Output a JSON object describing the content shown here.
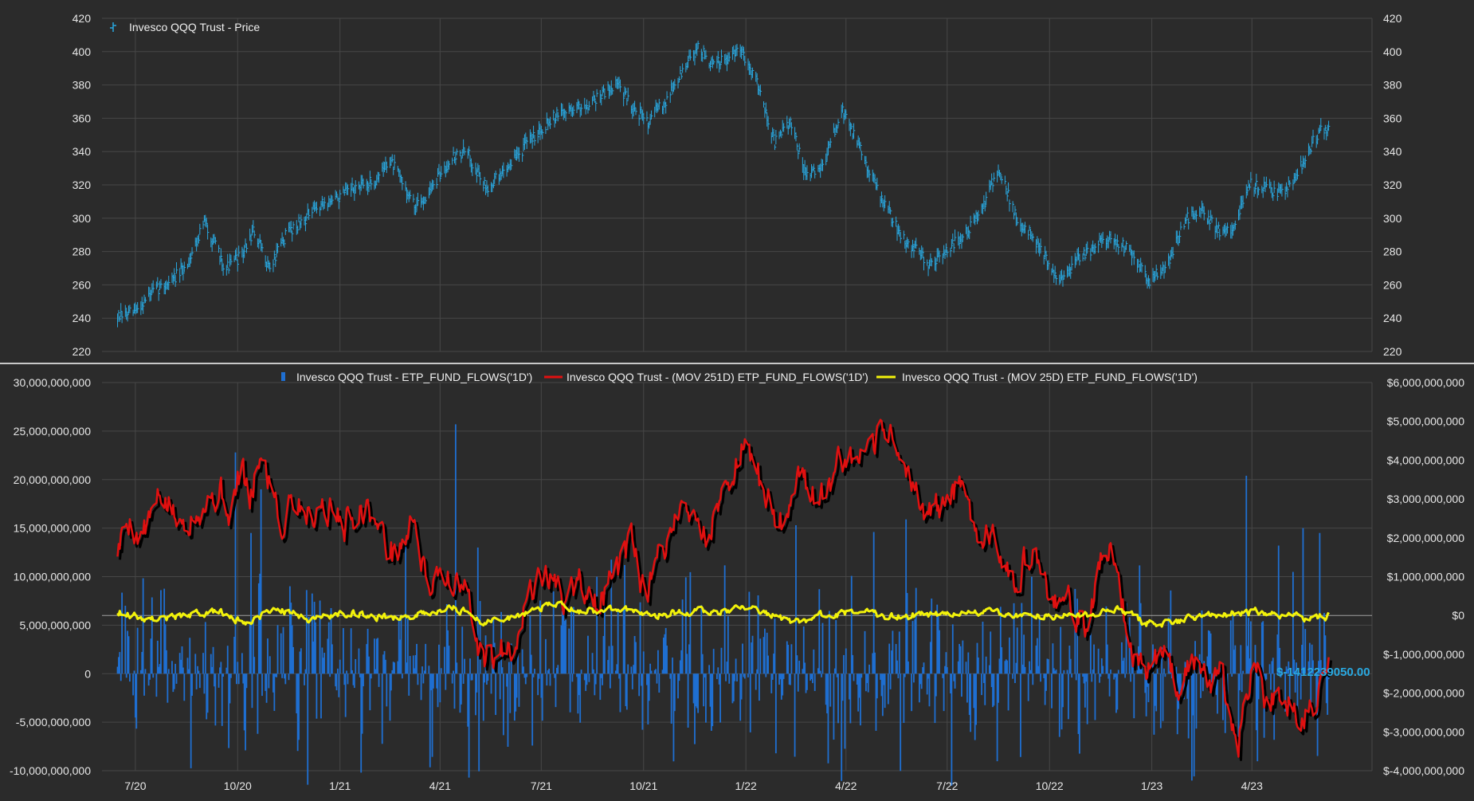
{
  "colors": {
    "background": "#2b2b2b",
    "grid": "#474747",
    "axis_text": "#e6e6e6",
    "price": "#29a8e0",
    "flow_bars": "#1f6fd1",
    "ma251": "#e01010",
    "ma251_shadow": "#000000",
    "ma25": "#f2f20a",
    "last_value": "#29a8e0",
    "divider": "#c8c8c8",
    "zero_line": "#cfcfcf"
  },
  "chart_data": [
    {
      "type": "bar",
      "title": "",
      "legend_position": "top-left",
      "grid": true,
      "series": [
        {
          "name": "Invesco QQQ Trust - Price",
          "style": "hlc-bars",
          "color": "#29a8e0",
          "points": [
            [
              "2020-06-15",
              240
            ],
            [
              "2020-07-01",
              244
            ],
            [
              "2020-07-15",
              255
            ],
            [
              "2020-08-01",
              262
            ],
            [
              "2020-08-15",
              270
            ],
            [
              "2020-09-01",
              298
            ],
            [
              "2020-09-20",
              270
            ],
            [
              "2020-10-05",
              278
            ],
            [
              "2020-10-15",
              292
            ],
            [
              "2020-10-30",
              270
            ],
            [
              "2020-11-15",
              292
            ],
            [
              "2020-12-01",
              300
            ],
            [
              "2020-12-15",
              308
            ],
            [
              "2021-01-01",
              313
            ],
            [
              "2021-01-15",
              318
            ],
            [
              "2021-02-01",
              322
            ],
            [
              "2021-02-15",
              335
            ],
            [
              "2021-03-01",
              318
            ],
            [
              "2021-03-10",
              306
            ],
            [
              "2021-03-25",
              318
            ],
            [
              "2021-04-10",
              336
            ],
            [
              "2021-04-25",
              340
            ],
            [
              "2021-05-12",
              318
            ],
            [
              "2021-05-25",
              326
            ],
            [
              "2021-06-10",
              338
            ],
            [
              "2021-06-25",
              350
            ],
            [
              "2021-07-10",
              360
            ],
            [
              "2021-07-25",
              365
            ],
            [
              "2021-08-10",
              368
            ],
            [
              "2021-08-25",
              375
            ],
            [
              "2021-09-07",
              381
            ],
            [
              "2021-09-20",
              368
            ],
            [
              "2021-10-04",
              358
            ],
            [
              "2021-10-20",
              370
            ],
            [
              "2021-11-05",
              388
            ],
            [
              "2021-11-19",
              403
            ],
            [
              "2021-12-01",
              392
            ],
            [
              "2021-12-15",
              395
            ],
            [
              "2021-12-27",
              401
            ],
            [
              "2022-01-10",
              385
            ],
            [
              "2022-01-27",
              345
            ],
            [
              "2022-02-10",
              358
            ],
            [
              "2022-02-24",
              325
            ],
            [
              "2022-03-10",
              330
            ],
            [
              "2022-03-29",
              365
            ],
            [
              "2022-04-15",
              340
            ],
            [
              "2022-05-01",
              315
            ],
            [
              "2022-05-20",
              290
            ],
            [
              "2022-06-16",
              272
            ],
            [
              "2022-07-01",
              282
            ],
            [
              "2022-07-15",
              288
            ],
            [
              "2022-08-01",
              305
            ],
            [
              "2022-08-16",
              330
            ],
            [
              "2022-09-01",
              300
            ],
            [
              "2022-09-15",
              290
            ],
            [
              "2022-10-01",
              272
            ],
            [
              "2022-10-13",
              262
            ],
            [
              "2022-10-25",
              275
            ],
            [
              "2022-11-10",
              282
            ],
            [
              "2022-11-25",
              290
            ],
            [
              "2022-12-15",
              278
            ],
            [
              "2022-12-28",
              262
            ],
            [
              "2023-01-15",
              272
            ],
            [
              "2023-02-01",
              300
            ],
            [
              "2023-02-15",
              305
            ],
            [
              "2023-03-01",
              292
            ],
            [
              "2023-03-15",
              295
            ],
            [
              "2023-03-31",
              320
            ],
            [
              "2023-04-15",
              318
            ],
            [
              "2023-04-27",
              315
            ],
            [
              "2023-05-10",
              325
            ],
            [
              "2023-05-25",
              345
            ],
            [
              "2023-06-01",
              352
            ],
            [
              "2023-06-09",
              354
            ]
          ]
        }
      ],
      "y_axis_left": {
        "min": 220,
        "max": 420,
        "ticks": [
          "420",
          "400",
          "380",
          "360",
          "340",
          "320",
          "300",
          "280",
          "260",
          "240",
          "220"
        ]
      },
      "y_axis_right": {
        "min": 220,
        "max": 420,
        "ticks": [
          "420",
          "400",
          "380",
          "360",
          "340",
          "320",
          "300",
          "280",
          "260",
          "240",
          "220"
        ]
      },
      "ylim": [
        220,
        420
      ]
    },
    {
      "type": "bar",
      "title": "",
      "legend_position": "top-center",
      "grid": true,
      "series": [
        {
          "name": "Invesco QQQ Trust - ETP_FUND_FLOWS('1D')",
          "style": "bars",
          "axis": "left",
          "color": "#1f6fd1",
          "spikes": [
            [
              "2020-09-29",
              22800000000
            ],
            [
              "2020-10-08",
              -7900000000
            ],
            [
              "2020-10-13",
              14500000000
            ],
            [
              "2020-10-19",
              -6200000000
            ],
            [
              "2020-10-22",
              19000000000
            ],
            [
              "2021-03-01",
              13800000000
            ],
            [
              "2021-04-15",
              25700000000
            ],
            [
              "2021-05-05",
              13000000000
            ],
            [
              "2021-09-14",
              11200000000
            ],
            [
              "2022-02-15",
              15300000000
            ],
            [
              "2022-03-21",
              -6800000000
            ],
            [
              "2022-04-26",
              14600000000
            ],
            [
              "2022-05-25",
              15900000000
            ],
            [
              "2022-07-22",
              -6000000000
            ],
            [
              "2022-12-27",
              -4400000000
            ],
            [
              "2023-03-27",
              20400000000
            ],
            [
              "2023-04-25",
              13200000000
            ],
            [
              "2023-05-17",
              15000000000
            ],
            [
              "2023-06-01",
              14500000000
            ]
          ]
        },
        {
          "name": "Invesco QQQ Trust - (MOV 251D) ETP_FUND_FLOWS('1D')",
          "style": "line",
          "axis": "right",
          "color": "#e01010",
          "points": [
            [
              "2020-06-15",
              1700000000
            ],
            [
              "2020-06-25",
              2500000000
            ],
            [
              "2020-07-05",
              2000000000
            ],
            [
              "2020-07-25",
              3100000000
            ],
            [
              "2020-08-10",
              2300000000
            ],
            [
              "2020-08-25",
              2800000000
            ],
            [
              "2020-09-15",
              3200000000
            ],
            [
              "2020-09-25",
              2600000000
            ],
            [
              "2020-10-05",
              3900000000
            ],
            [
              "2020-10-12",
              2700000000
            ],
            [
              "2020-10-20",
              4100000000
            ],
            [
              "2020-11-05",
              3100000000
            ],
            [
              "2020-11-10",
              2000000000
            ],
            [
              "2020-11-15",
              3200000000
            ],
            [
              "2020-12-05",
              2600000000
            ],
            [
              "2020-12-15",
              2900000000
            ],
            [
              "2021-01-05",
              2400000000
            ],
            [
              "2021-01-25",
              2900000000
            ],
            [
              "2021-02-05",
              2200000000
            ],
            [
              "2021-02-20",
              1500000000
            ],
            [
              "2021-03-10",
              2500000000
            ],
            [
              "2021-03-20",
              600000000
            ],
            [
              "2021-04-01",
              1300000000
            ],
            [
              "2021-04-15",
              700000000
            ],
            [
              "2021-04-25",
              600000000
            ],
            [
              "2021-05-05",
              -1000000000
            ],
            [
              "2021-05-20",
              -1100000000
            ],
            [
              "2021-06-05",
              -700000000
            ],
            [
              "2021-06-20",
              600000000
            ],
            [
              "2021-07-05",
              1200000000
            ],
            [
              "2021-07-20",
              400000000
            ],
            [
              "2021-08-05",
              900000000
            ],
            [
              "2021-08-20",
              200000000
            ],
            [
              "2021-09-05",
              1000000000
            ],
            [
              "2021-09-20",
              1800000000
            ],
            [
              "2021-10-01",
              700000000
            ],
            [
              "2021-10-05",
              400000000
            ],
            [
              "2021-10-15",
              1600000000
            ],
            [
              "2021-11-05",
              2900000000
            ],
            [
              "2021-11-25",
              2000000000
            ],
            [
              "2021-12-10",
              3100000000
            ],
            [
              "2021-12-28",
              4300000000
            ],
            [
              "2022-01-15",
              3400000000
            ],
            [
              "2022-01-31",
              2200000000
            ],
            [
              "2022-02-20",
              3900000000
            ],
            [
              "2022-03-05",
              2800000000
            ],
            [
              "2022-03-25",
              3800000000
            ],
            [
              "2022-04-20",
              4000000000
            ],
            [
              "2022-05-10",
              4900000000
            ],
            [
              "2022-05-25",
              3600000000
            ],
            [
              "2022-06-10",
              2700000000
            ],
            [
              "2022-06-25",
              2800000000
            ],
            [
              "2022-07-10",
              3300000000
            ],
            [
              "2022-07-25",
              2400000000
            ],
            [
              "2022-08-15",
              1800000000
            ],
            [
              "2022-09-01",
              1000000000
            ],
            [
              "2022-09-15",
              1600000000
            ],
            [
              "2022-09-30",
              500000000
            ],
            [
              "2022-10-20",
              200000000
            ],
            [
              "2022-11-05",
              -200000000
            ],
            [
              "2022-11-20",
              1800000000
            ],
            [
              "2022-12-01",
              1300000000
            ],
            [
              "2022-12-10",
              -600000000
            ],
            [
              "2022-12-25",
              -1400000000
            ],
            [
              "2023-01-10",
              -800000000
            ],
            [
              "2023-01-25",
              -1800000000
            ],
            [
              "2023-02-05",
              -1000000000
            ],
            [
              "2023-02-20",
              -1700000000
            ],
            [
              "2023-03-05",
              -1500000000
            ],
            [
              "2023-03-20",
              -3200000000
            ],
            [
              "2023-04-01",
              -1200000000
            ],
            [
              "2023-04-15",
              -2300000000
            ],
            [
              "2023-05-01",
              -1900000000
            ],
            [
              "2023-05-15",
              -2800000000
            ],
            [
              "2023-05-30",
              -2000000000
            ],
            [
              "2023-06-09",
              -1412239050
            ]
          ]
        },
        {
          "name": "Invesco QQQ Trust - (MOV 25D) ETP_FUND_FLOWS('1D')",
          "style": "line",
          "axis": "right",
          "color": "#f2f20a",
          "points": [
            [
              "2020-06-15",
              100000000
            ],
            [
              "2020-07-15",
              -100000000
            ],
            [
              "2020-08-15",
              0
            ],
            [
              "2020-09-15",
              100000000
            ],
            [
              "2020-10-05",
              -200000000
            ],
            [
              "2020-11-05",
              200000000
            ],
            [
              "2020-12-05",
              -100000000
            ],
            [
              "2021-01-05",
              100000000
            ],
            [
              "2021-02-05",
              -50000000
            ],
            [
              "2021-03-05",
              0
            ],
            [
              "2021-04-15",
              200000000
            ],
            [
              "2021-05-10",
              -200000000
            ],
            [
              "2021-06-10",
              0
            ],
            [
              "2021-07-10",
              300000000
            ],
            [
              "2021-08-10",
              100000000
            ],
            [
              "2021-09-10",
              200000000
            ],
            [
              "2021-10-10",
              0
            ],
            [
              "2021-11-10",
              100000000
            ],
            [
              "2021-12-10",
              100000000
            ],
            [
              "2022-01-10",
              200000000
            ],
            [
              "2022-02-10",
              -200000000
            ],
            [
              "2022-03-10",
              0
            ],
            [
              "2022-04-10",
              100000000
            ],
            [
              "2022-05-10",
              0
            ],
            [
              "2022-06-10",
              0
            ],
            [
              "2022-07-10",
              50000000
            ],
            [
              "2022-08-10",
              100000000
            ],
            [
              "2022-09-10",
              -50000000
            ],
            [
              "2022-10-10",
              0
            ],
            [
              "2022-11-10",
              0
            ],
            [
              "2022-12-05",
              150000000
            ],
            [
              "2022-12-25",
              -200000000
            ],
            [
              "2023-01-25",
              -150000000
            ],
            [
              "2023-02-25",
              0
            ],
            [
              "2023-03-25",
              100000000
            ],
            [
              "2023-04-25",
              50000000
            ],
            [
              "2023-05-25",
              -100000000
            ],
            [
              "2023-06-09",
              0
            ]
          ]
        }
      ],
      "last_value_label": "$-1412239050.00",
      "y_axis_left": {
        "min": -10000000000,
        "max": 30000000000,
        "ticks": [
          "30,000,000,000",
          "25,000,000,000",
          "20,000,000,000",
          "15,000,000,000",
          "10,000,000,000",
          "5,000,000,000",
          "0",
          "-5,000,000,000",
          "-10,000,000,000"
        ]
      },
      "y_axis_right": {
        "min": -4000000000,
        "max": 6000000000,
        "ticks": [
          "$6,000,000,000",
          "$5,000,000,000",
          "$4,000,000,000",
          "$3,000,000,000",
          "$2,000,000,000",
          "$1,000,000,000",
          "$0",
          "$-1,000,000,000",
          "$-2,000,000,000",
          "$-3,000,000,000",
          "$-4,000,000,000"
        ]
      },
      "ylim": [
        -10000000000,
        30000000000
      ]
    }
  ],
  "x_axis": {
    "start": "2020-06-01",
    "end": "2023-07-18",
    "tick_dates": [
      "2020-07-01",
      "2020-10-01",
      "2021-01-01",
      "2021-04-01",
      "2021-07-01",
      "2021-10-01",
      "2022-01-01",
      "2022-04-01",
      "2022-07-01",
      "2022-10-01",
      "2023-01-01",
      "2023-04-01"
    ],
    "tick_labels": [
      "7/20",
      "10/20",
      "1/21",
      "4/21",
      "7/21",
      "10/21",
      "1/22",
      "4/22",
      "7/22",
      "10/22",
      "1/23",
      "4/23"
    ]
  }
}
